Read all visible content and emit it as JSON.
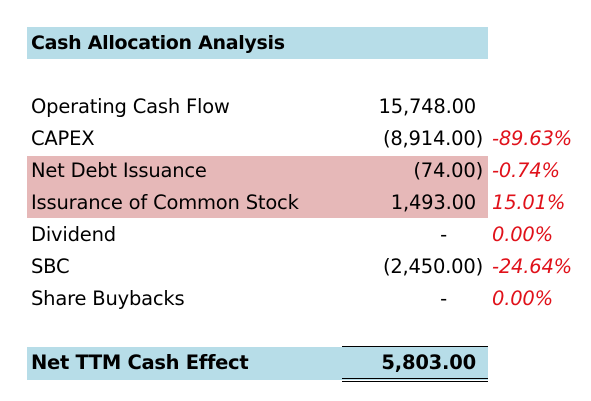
{
  "title": "Cash Allocation Analysis",
  "colors": {
    "header_fill": "#b7dde8",
    "highlight_fill": "#e6b8b8",
    "percent_text": "#e0111a",
    "text": "#000000"
  },
  "rows": [
    {
      "label": "Operating Cash Flow",
      "value": "15,748.00",
      "percent": "",
      "highlight": false
    },
    {
      "label": "CAPEX",
      "value": "(8,914.00)",
      "percent": "-89.63%",
      "highlight": false
    },
    {
      "label": "Net Debt Issuance",
      "value": "(74.00)",
      "percent": "-0.74%",
      "highlight": true
    },
    {
      "label": "Issurance of Common Stock",
      "value": "1,493.00",
      "percent": "15.01%",
      "highlight": true
    },
    {
      "label": "Dividend",
      "value": "-",
      "percent": "0.00%",
      "highlight": false
    },
    {
      "label": "SBC",
      "value": "(2,450.00)",
      "percent": "-24.64%",
      "highlight": false
    },
    {
      "label": "Share Buybacks",
      "value": "-",
      "percent": "0.00%",
      "highlight": false
    }
  ],
  "total": {
    "label": "Net TTM Cash Effect",
    "value": "5,803.00"
  }
}
